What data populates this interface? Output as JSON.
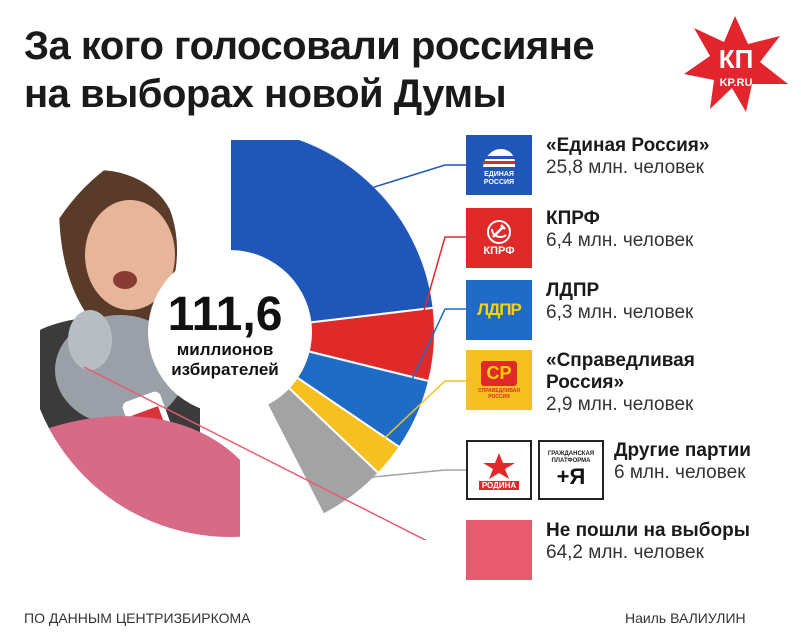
{
  "title": {
    "line1": "За кого голосовали россияне",
    "line2": "на выборах новой Думы"
  },
  "logo": {
    "mark": "КП",
    "site": "KP.RU"
  },
  "center": {
    "value": "111,6",
    "line1": "миллионов",
    "line2": "избирателей"
  },
  "legend": [
    {
      "name": "«Единая Россия»",
      "value": "25,8 млн. человек",
      "badge": "ЕДИНАЯ РОССИЯ"
    },
    {
      "name": "КПРФ",
      "value": "6,4 млн. человек",
      "badge": "КПРФ"
    },
    {
      "name": "ЛДПР",
      "value": "6,3 млн. человек",
      "badge": "ЛДПР"
    },
    {
      "name": "«Справедливая",
      "name2": "Россия»",
      "value": "2,9 млн. человек",
      "badge": "СР",
      "badge2": "СПРАВЕДЛИВАЯ РОССИЯ"
    },
    {
      "name": "Другие партии",
      "value": "6 млн. человек",
      "badge": "РОДИНА",
      "badge2": "ГРАЖДАНСКАЯ ПЛАТФОРМА",
      "badge3": "+Я"
    },
    {
      "name": "Не пошли на выборы",
      "value": "64,2 млн. человек"
    }
  ],
  "colors": {
    "united_russia": "#1f56b8",
    "kprf": "#e02a2a",
    "ldpr": "#1f6cc7",
    "sr": "#f5c020",
    "other": "#a3a3a3",
    "abstain": "#e85a6f"
  },
  "footer": {
    "source": "ПО ДАННЫМ ЦЕНТРИЗБИРКОМА",
    "author": "Наиль ВАЛИУЛИН"
  },
  "chart_data": {
    "type": "pie",
    "title": "За кого голосовали россияне на выборах новой Думы",
    "total": 111.6,
    "unit": "млн. человек",
    "categories": [
      "«Единая Россия»",
      "КПРФ",
      "ЛДПР",
      "«Справедливая Россия»",
      "Другие партии",
      "Не пошли на выборы"
    ],
    "values": [
      25.8,
      6.4,
      6.3,
      2.9,
      6,
      64.2
    ]
  }
}
